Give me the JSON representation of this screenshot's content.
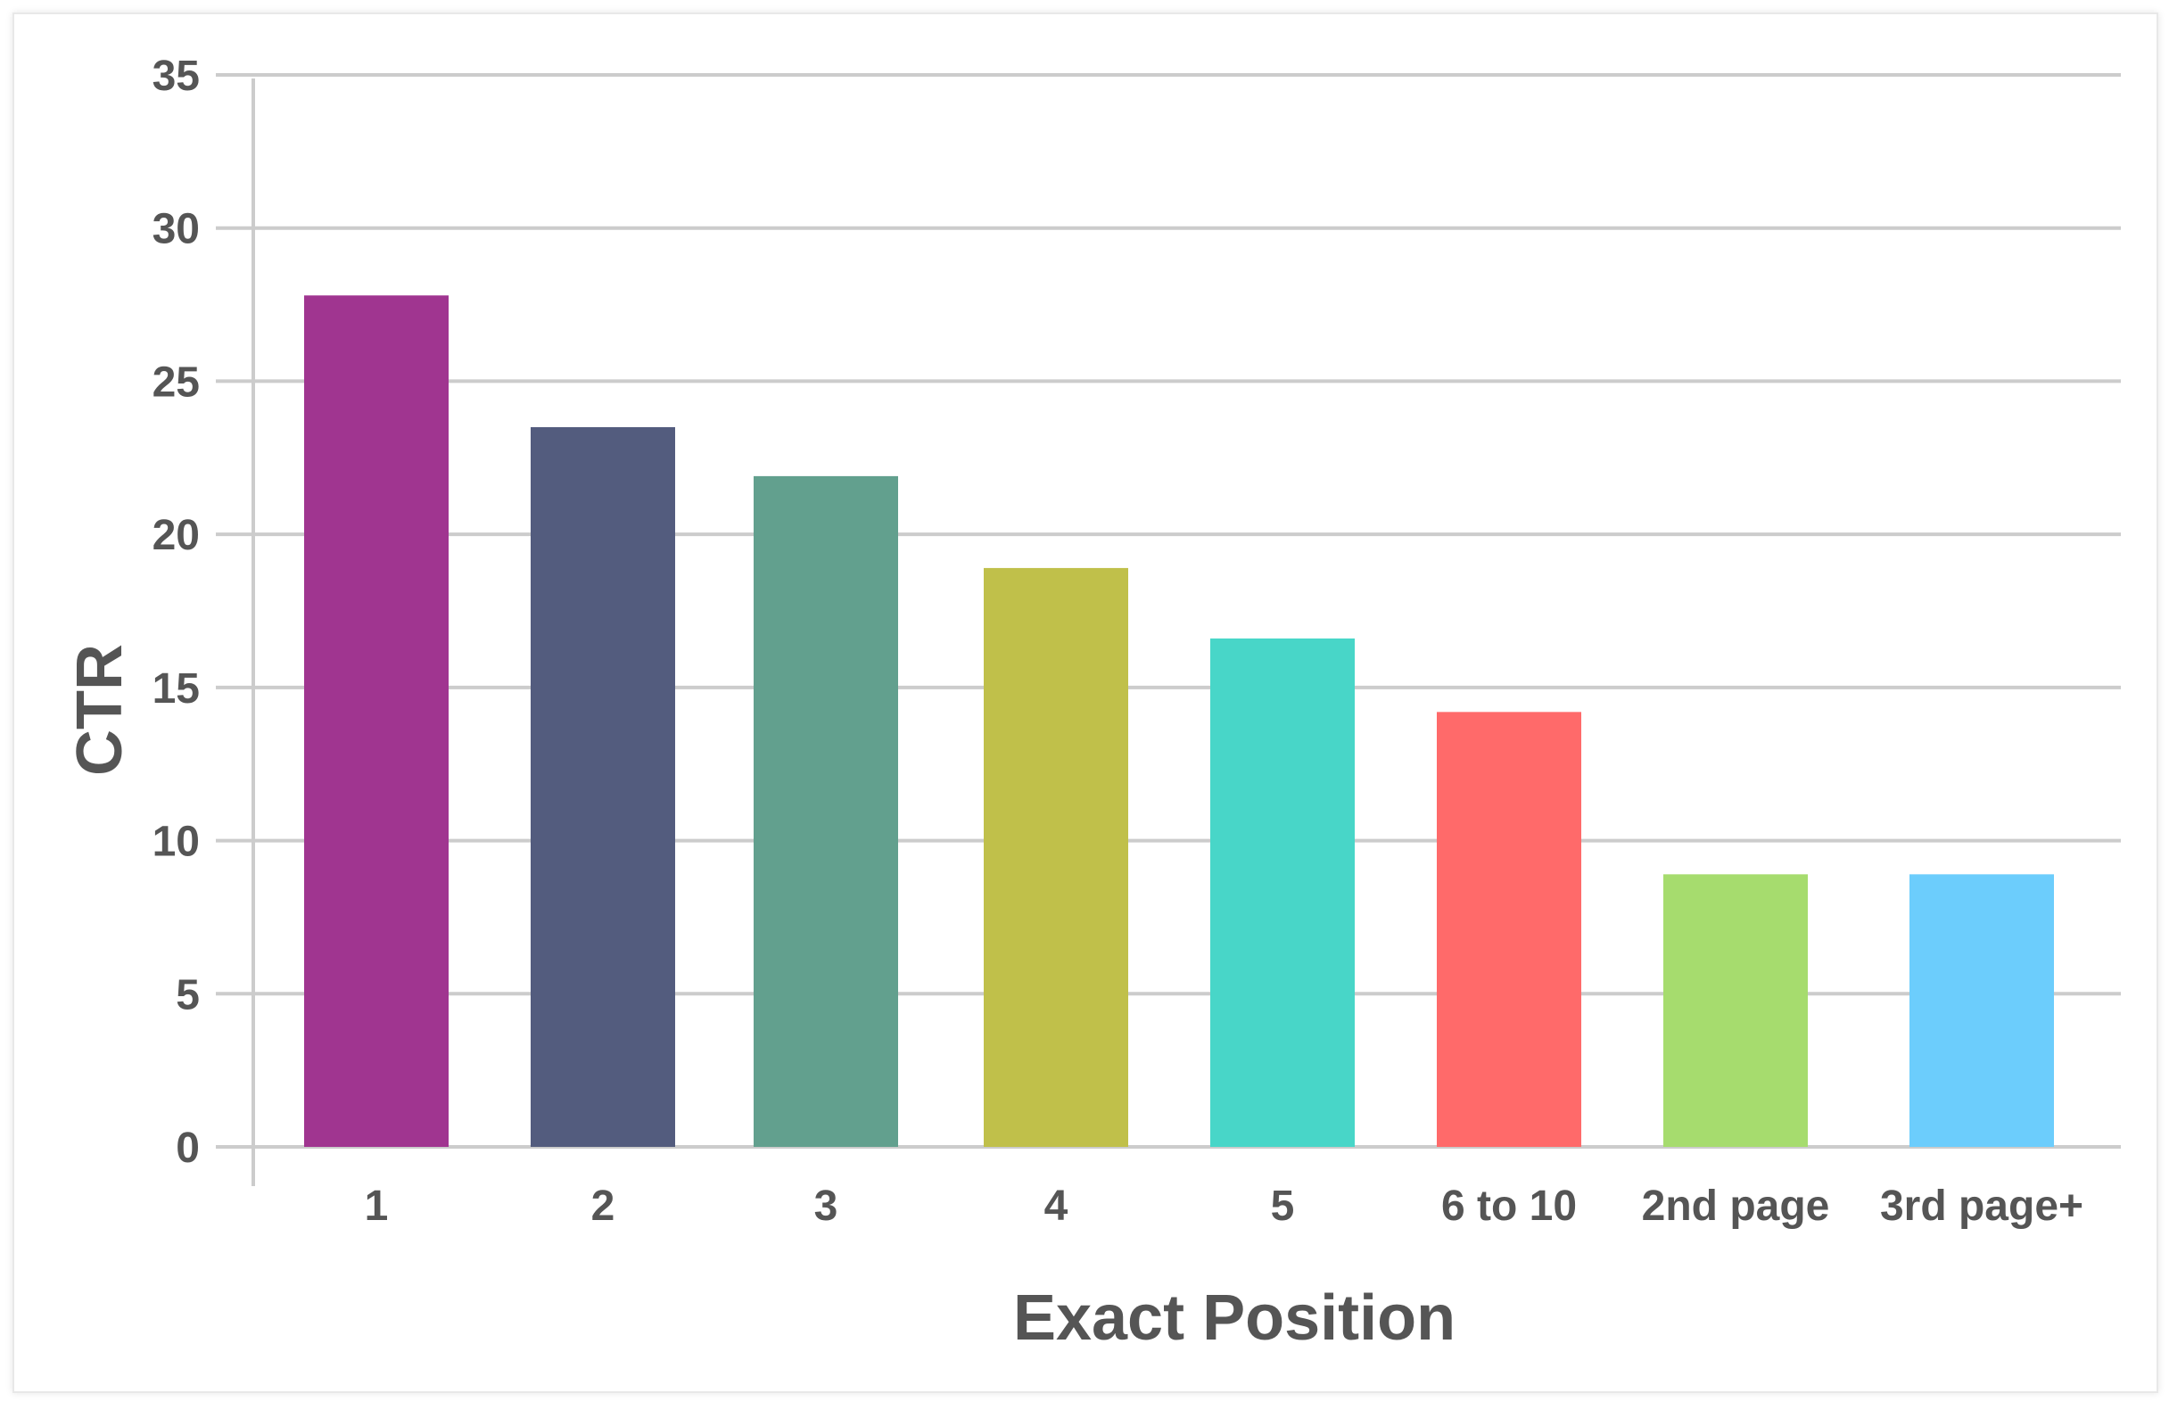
{
  "chart_data": {
    "type": "bar",
    "title": "",
    "xlabel": "Exact Position",
    "ylabel": "CTR",
    "categories": [
      "1",
      "2",
      "3",
      "4",
      "5",
      "6 to 10",
      "2nd page",
      "3rd page+"
    ],
    "values": [
      27.8,
      23.5,
      21.9,
      18.9,
      16.6,
      14.2,
      8.9,
      8.9
    ],
    "colors": [
      "#a03590",
      "#535c7e",
      "#62a08e",
      "#c0c04a",
      "#48d6c8",
      "#ff6a6a",
      "#a6dc6e",
      "#6ccdfc"
    ],
    "ylim": [
      0,
      35
    ],
    "yticks": [
      "0",
      "5",
      "10",
      "15",
      "20",
      "25",
      "30",
      "35"
    ],
    "grid": true,
    "legend": "none"
  }
}
